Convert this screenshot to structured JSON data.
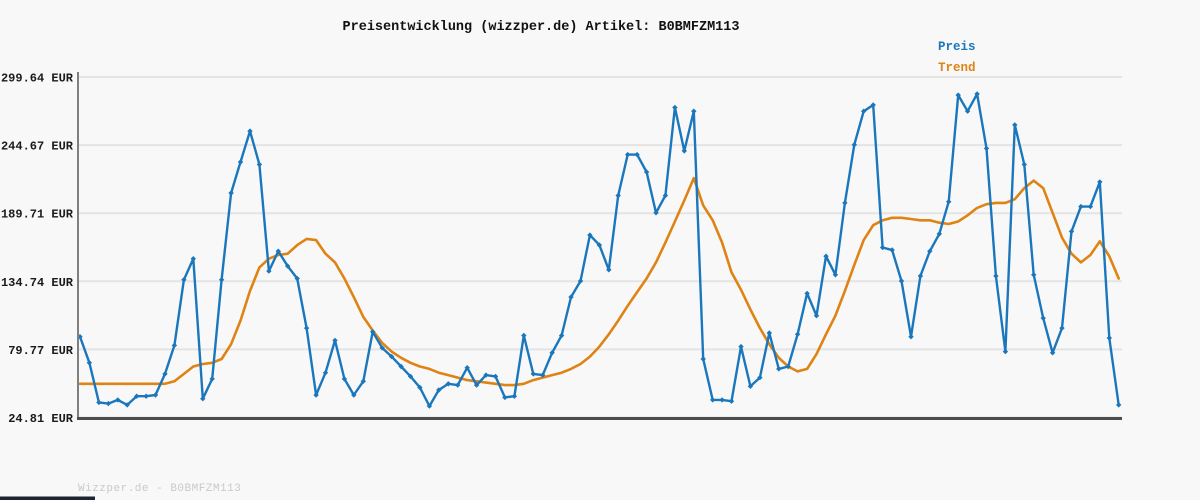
{
  "title": "Preisentwicklung (wizzper.de) Artikel: B0BMFZM113",
  "watermark": "Wizzper.de - B0BMFZM113",
  "legend": {
    "position": "top-right",
    "items": [
      {
        "label": "Preis",
        "color": "#1b77bc"
      },
      {
        "label": "Trend",
        "color": "#de8314"
      }
    ]
  },
  "colors": {
    "background": "#f8f8f8",
    "grid": "#e4e4e4",
    "left_spine": "#7f7f7f",
    "bottom_spine": "#4d4d4d",
    "price_line": "#1b77bc",
    "trend_line": "#de8314",
    "text": "#111111",
    "watermark": "#c9c9c9",
    "corner_bar": "#1c2430"
  },
  "chart_data": {
    "type": "line",
    "title": "Preisentwicklung (wizzper.de) Artikel: B0BMFZM113",
    "currency": "EUR",
    "xlabel": "",
    "ylabel": "",
    "x_tick_labels": [],
    "grid": "horizontal-only",
    "ylim": [
      24.81,
      299.64
    ],
    "y_tick_values": [
      299.64,
      244.67,
      189.71,
      134.74,
      79.77,
      24.81
    ],
    "y_tick_labels": [
      "299.64 EUR",
      "244.67 EUR",
      "189.71 EUR",
      "134.74 EUR",
      "79.77 EUR",
      "24.81 EUR"
    ],
    "legend_position": "top-right",
    "series": [
      {
        "name": "Preis",
        "color": "#1b77bc",
        "marker": "diamond",
        "values": [
          90,
          69,
          37,
          36,
          39,
          35,
          42,
          42,
          43,
          60,
          83,
          136,
          153,
          40,
          56,
          136,
          206,
          231,
          256,
          229,
          143,
          159,
          147,
          137,
          97,
          43,
          61,
          87,
          56,
          43,
          54,
          94,
          81,
          74,
          66,
          58,
          49,
          34,
          47,
          52,
          51,
          65,
          51,
          59,
          58,
          41,
          42,
          91,
          60,
          59,
          77,
          91,
          122,
          135,
          172,
          164,
          144,
          204,
          237,
          237,
          223,
          190,
          204,
          275,
          240,
          272,
          72,
          39,
          39,
          38,
          82,
          50,
          57,
          93,
          64,
          66,
          92,
          125,
          107,
          155,
          140,
          198,
          245,
          272,
          277,
          162,
          160,
          135,
          90,
          139,
          159,
          173,
          199,
          285,
          272,
          286,
          242,
          139,
          78,
          261,
          229,
          140,
          105,
          77,
          97,
          175,
          195,
          195,
          215,
          89,
          35
        ]
      },
      {
        "name": "Trend",
        "color": "#de8314",
        "marker": "none",
        "values": [
          52,
          52,
          52,
          52,
          52,
          52,
          52,
          52,
          52,
          52,
          54,
          60,
          66,
          68,
          69,
          72,
          84,
          103,
          127,
          146,
          153,
          156,
          157,
          164,
          169,
          168,
          157,
          150,
          137,
          122,
          106,
          95,
          85,
          78,
          73,
          69,
          66,
          64,
          61,
          59,
          57,
          55,
          54,
          53,
          52,
          51,
          51,
          52,
          55,
          57,
          59,
          61,
          64,
          68,
          74,
          82,
          92,
          103,
          115,
          126,
          137,
          150,
          166,
          183,
          200,
          218,
          196,
          184,
          166,
          142,
          128,
          112,
          97,
          84,
          73,
          66,
          62,
          64,
          76,
          92,
          107,
          127,
          148,
          168,
          180,
          184,
          186,
          186,
          185,
          184,
          184,
          182,
          181,
          183,
          188,
          194,
          197,
          198,
          198,
          201,
          210,
          216,
          210,
          190,
          170,
          157,
          150,
          156,
          167,
          155,
          137
        ]
      }
    ]
  }
}
